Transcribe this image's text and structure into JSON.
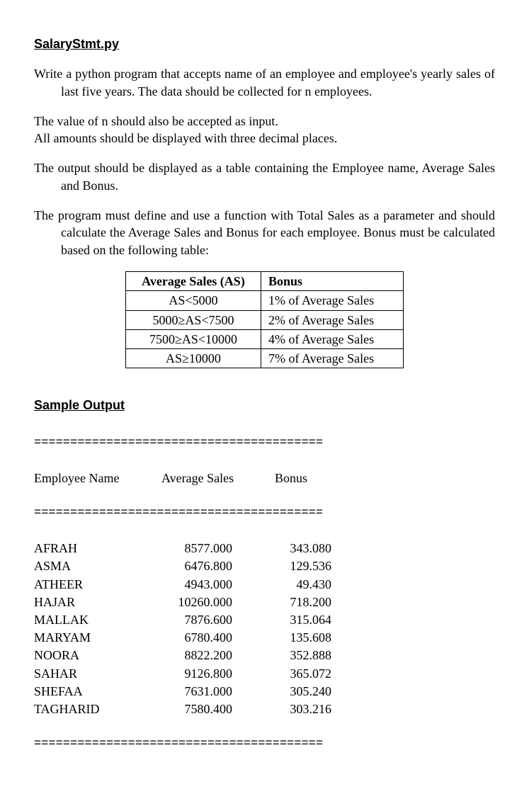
{
  "title": "SalaryStmt.py",
  "paragraphs": {
    "p1": "Write a python program that accepts name of an employee and employee's yearly sales of last five years. The data should be collected for n employees.",
    "p2a": "The value of n should also be accepted as input.",
    "p2b": "All amounts should be displayed with three decimal places.",
    "p3": "The output should be displayed as a table containing the Employee name, Average Sales and Bonus.",
    "p4": "The program must define and use a function with Total Sales as a parameter and should calculate the Average Sales and Bonus for each employee. Bonus must be calculated based on the following table:"
  },
  "rules_table": {
    "header_as": "Average Sales (AS)",
    "header_bonus": "Bonus",
    "rows": [
      {
        "as": "AS<5000",
        "bonus": "1% of Average Sales"
      },
      {
        "as": "5000≥AS<7500",
        "bonus": "2% of Average Sales"
      },
      {
        "as": "7500≥AS<10000",
        "bonus": "4% of Average Sales"
      },
      {
        "as": "AS≥10000",
        "bonus": "7% of Average Sales"
      }
    ]
  },
  "sample_heading": "Sample Output",
  "separator": "========================================",
  "output_headers": {
    "name": "Employee Name",
    "avg": "Average Sales",
    "bonus": "Bonus"
  },
  "output_rows": [
    {
      "name": "AFRAH",
      "avg": "8577.000",
      "bonus": "343.080"
    },
    {
      "name": "ASMA",
      "avg": "6476.800",
      "bonus": "129.536"
    },
    {
      "name": "ATHEER",
      "avg": "4943.000",
      "bonus": "49.430"
    },
    {
      "name": "HAJAR",
      "avg": "10260.000",
      "bonus": "718.200"
    },
    {
      "name": "MALLAK",
      "avg": "7876.600",
      "bonus": "315.064"
    },
    {
      "name": "MARYAM",
      "avg": "6780.400",
      "bonus": "135.608"
    },
    {
      "name": "NOORA",
      "avg": "8822.200",
      "bonus": "352.888"
    },
    {
      "name": "SAHAR",
      "avg": "9126.800",
      "bonus": "365.072"
    },
    {
      "name": "SHEFAA",
      "avg": "7631.000",
      "bonus": "305.240"
    },
    {
      "name": "TAGHARID",
      "avg": "7580.400",
      "bonus": "303.216"
    }
  ]
}
